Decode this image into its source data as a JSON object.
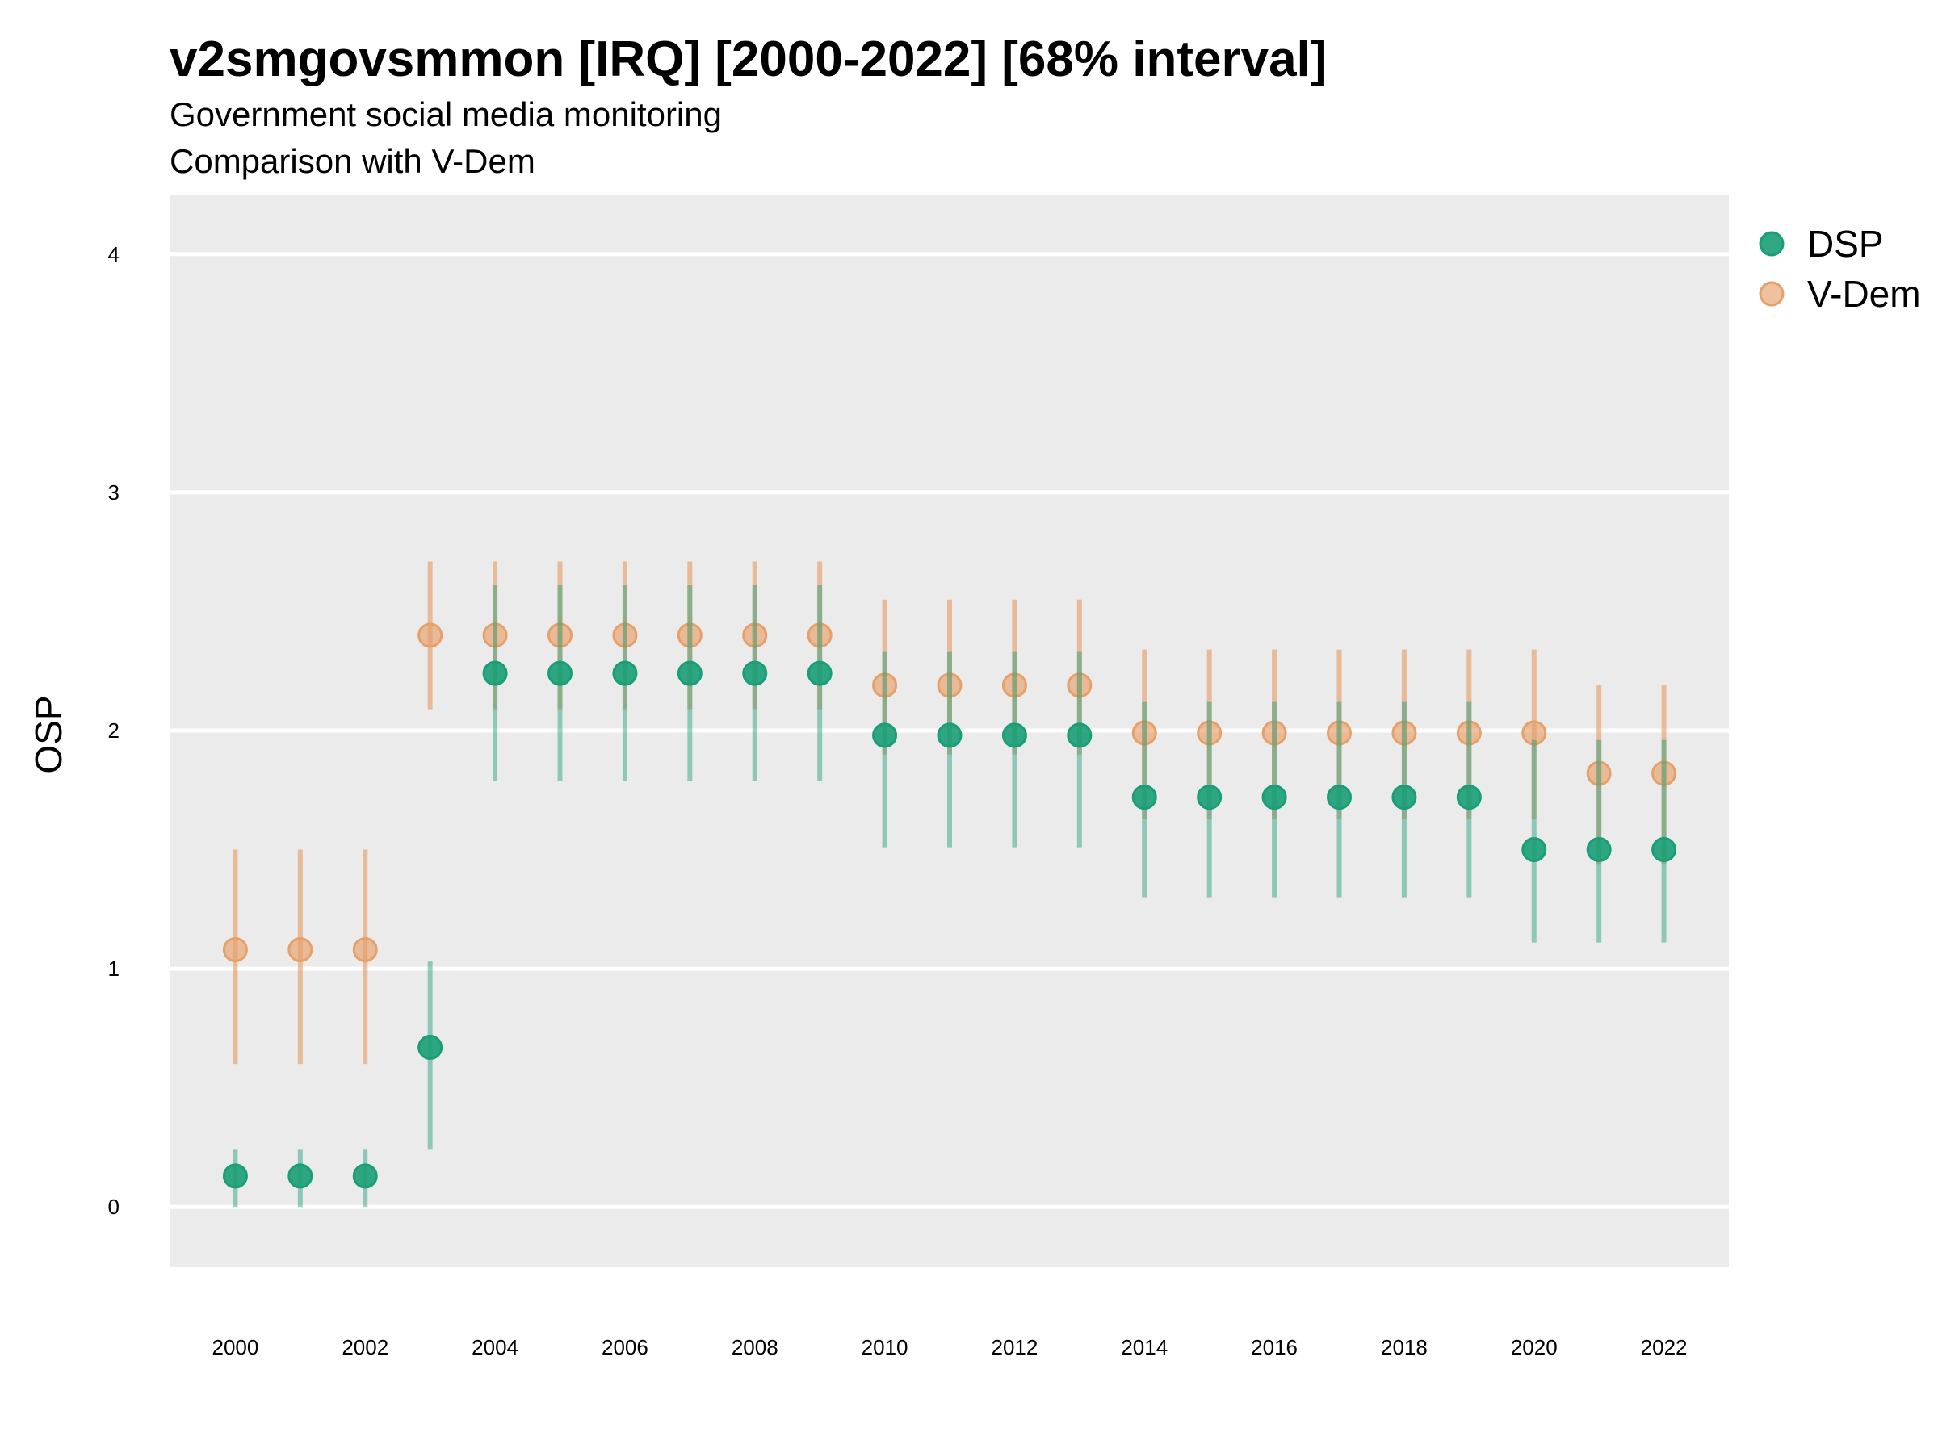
{
  "chart_data": {
    "type": "scatter",
    "title": "v2smgovsmmon [IRQ] [2000-2022] [68% interval]",
    "subtitle": "Government social media monitoring",
    "subtitle2": "Comparison with V-Dem",
    "ylabel": "OSP",
    "xlabel": "",
    "ylim": [
      -0.25,
      4.25
    ],
    "xlim": [
      1999,
      2023
    ],
    "yticks": [
      "0",
      "1",
      "2",
      "3",
      "4"
    ],
    "xticks": [
      "2000",
      "2002",
      "2004",
      "2006",
      "2008",
      "2010",
      "2012",
      "2014",
      "2016",
      "2018",
      "2020",
      "2022"
    ],
    "grid": true,
    "legend_position": "right",
    "series": [
      {
        "name": "DSP",
        "color": "#1b9e77",
        "x": [
          2000,
          2001,
          2002,
          2003,
          2004,
          2005,
          2006,
          2007,
          2008,
          2009,
          2010,
          2011,
          2012,
          2013,
          2014,
          2015,
          2016,
          2017,
          2018,
          2019,
          2020,
          2021,
          2022
        ],
        "y": [
          0.13,
          0.13,
          0.13,
          0.67,
          2.24,
          2.24,
          2.24,
          2.24,
          2.24,
          2.24,
          1.98,
          1.98,
          1.98,
          1.98,
          1.72,
          1.72,
          1.72,
          1.72,
          1.72,
          1.72,
          1.5,
          1.5,
          1.5
        ],
        "lower": [
          0.0,
          0.0,
          0.0,
          0.24,
          1.79,
          1.79,
          1.79,
          1.79,
          1.79,
          1.79,
          1.51,
          1.51,
          1.51,
          1.51,
          1.3,
          1.3,
          1.3,
          1.3,
          1.3,
          1.3,
          1.11,
          1.11,
          1.11
        ],
        "upper": [
          0.24,
          0.24,
          0.24,
          1.03,
          2.61,
          2.61,
          2.61,
          2.61,
          2.61,
          2.61,
          2.33,
          2.33,
          2.33,
          2.33,
          2.12,
          2.12,
          2.12,
          2.12,
          2.12,
          2.12,
          1.96,
          1.96,
          1.96
        ]
      },
      {
        "name": "V-Dem",
        "color": "#e6a06a",
        "x": [
          2000,
          2001,
          2002,
          2003,
          2004,
          2005,
          2006,
          2007,
          2008,
          2009,
          2010,
          2011,
          2012,
          2013,
          2014,
          2015,
          2016,
          2017,
          2018,
          2019,
          2020,
          2021,
          2022
        ],
        "y": [
          1.08,
          1.08,
          1.08,
          2.4,
          2.4,
          2.4,
          2.4,
          2.4,
          2.4,
          2.4,
          2.19,
          2.19,
          2.19,
          2.19,
          1.99,
          1.99,
          1.99,
          1.99,
          1.99,
          1.99,
          1.99,
          1.82,
          1.82
        ],
        "lower": [
          0.6,
          0.6,
          0.6,
          2.09,
          2.09,
          2.09,
          2.09,
          2.09,
          2.09,
          2.09,
          1.9,
          1.9,
          1.9,
          1.9,
          1.63,
          1.63,
          1.63,
          1.63,
          1.63,
          1.63,
          1.63,
          1.44,
          1.44
        ],
        "upper": [
          1.5,
          1.5,
          1.5,
          2.71,
          2.71,
          2.71,
          2.71,
          2.71,
          2.71,
          2.71,
          2.55,
          2.55,
          2.55,
          2.55,
          2.34,
          2.34,
          2.34,
          2.34,
          2.34,
          2.34,
          2.34,
          2.19,
          2.19
        ]
      }
    ]
  }
}
